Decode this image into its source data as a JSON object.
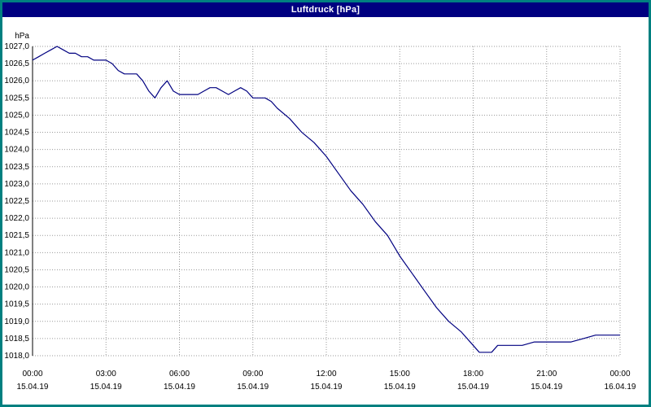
{
  "window": {
    "title": "Luftdruck [hPa]"
  },
  "colors": {
    "frame": "#008080",
    "titlebar_bg": "#000080",
    "titlebar_text": "#ffffff",
    "plot_bg": "#ffffff",
    "grid": "#9a9a9a",
    "axis": "#000000",
    "series_line": "#000080",
    "tick_text": "#000000"
  },
  "chart_data": {
    "type": "line",
    "title": "Luftdruck [hPa]",
    "ylabel": "hPa",
    "xlabel": "",
    "ylim": [
      1018.0,
      1027.0
    ],
    "ytick_step": 0.5,
    "ytick_decimal_separator": ",",
    "xlim_hours": [
      0,
      24
    ],
    "grid": true,
    "legend": "none",
    "xticks": {
      "hours": [
        0,
        3,
        6,
        9,
        12,
        15,
        18,
        21,
        24
      ],
      "time_labels": [
        "00:00",
        "03:00",
        "06:00",
        "09:00",
        "12:00",
        "15:00",
        "18:00",
        "21:00",
        "00:00"
      ],
      "date_labels": [
        "15.04.19",
        "15.04.19",
        "15.04.19",
        "15.04.19",
        "15.04.19",
        "15.04.19",
        "15.04.19",
        "15.04.19",
        "16.04.19"
      ]
    },
    "series": [
      {
        "name": "Luftdruck",
        "x_hours": [
          0.0,
          0.25,
          0.5,
          0.75,
          1.0,
          1.25,
          1.5,
          1.75,
          2.0,
          2.25,
          2.5,
          2.75,
          3.0,
          3.25,
          3.5,
          3.75,
          4.0,
          4.25,
          4.5,
          4.75,
          5.0,
          5.25,
          5.5,
          5.75,
          6.0,
          6.25,
          6.5,
          6.75,
          7.0,
          7.25,
          7.5,
          7.75,
          8.0,
          8.25,
          8.5,
          8.75,
          9.0,
          9.25,
          9.5,
          9.75,
          10.0,
          10.5,
          11.0,
          11.5,
          12.0,
          12.5,
          13.0,
          13.5,
          14.0,
          14.5,
          15.0,
          15.5,
          16.0,
          16.5,
          17.0,
          17.5,
          18.0,
          18.25,
          18.75,
          19.0,
          19.5,
          20.0,
          20.5,
          21.0,
          21.5,
          22.0,
          22.5,
          23.0,
          23.5,
          24.0
        ],
        "values": [
          1026.6,
          1026.7,
          1026.8,
          1026.9,
          1027.0,
          1026.9,
          1026.8,
          1026.8,
          1026.7,
          1026.7,
          1026.6,
          1026.6,
          1026.6,
          1026.5,
          1026.3,
          1026.2,
          1026.2,
          1026.2,
          1026.0,
          1025.7,
          1025.5,
          1025.8,
          1026.0,
          1025.7,
          1025.6,
          1025.6,
          1025.6,
          1025.6,
          1025.7,
          1025.8,
          1025.8,
          1025.7,
          1025.6,
          1025.7,
          1025.8,
          1025.7,
          1025.5,
          1025.5,
          1025.5,
          1025.4,
          1025.2,
          1024.9,
          1024.5,
          1024.2,
          1023.8,
          1023.3,
          1022.8,
          1022.4,
          1021.9,
          1021.5,
          1020.9,
          1020.4,
          1019.9,
          1019.4,
          1019.0,
          1018.7,
          1018.3,
          1018.1,
          1018.1,
          1018.3,
          1018.3,
          1018.3,
          1018.4,
          1018.4,
          1018.4,
          1018.4,
          1018.5,
          1018.6,
          1018.6,
          1018.6
        ]
      }
    ]
  }
}
